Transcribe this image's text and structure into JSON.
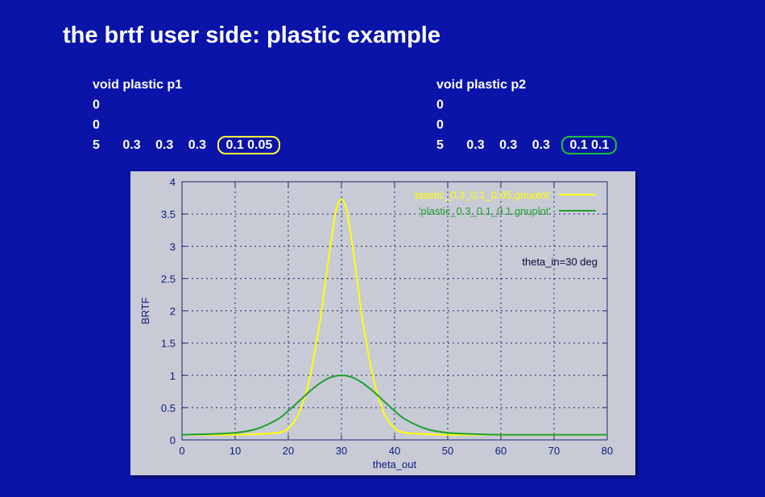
{
  "slide": {
    "title": "the brtf user side: plastic example",
    "background_color": "#0a14a8"
  },
  "definitions": [
    {
      "header": "void plastic p1",
      "line2": "0",
      "line3": "0",
      "count": "5",
      "params": [
        "0.3",
        "0.3",
        "0.3"
      ],
      "highlighted": "0.1 0.05",
      "highlight_color": "#ffff40"
    },
    {
      "header": "void plastic p2",
      "line2": "0",
      "line3": "0",
      "count": "5",
      "params": [
        "0.3",
        "0.3",
        "0.3"
      ],
      "highlighted": "0.1 0.1",
      "highlight_color": "#20c040"
    }
  ],
  "chart_data": {
    "type": "line",
    "xlabel": "theta_out",
    "ylabel": "BRTF",
    "xlim": [
      0,
      80
    ],
    "ylim": [
      0,
      4
    ],
    "x_ticks": [
      0,
      10,
      20,
      30,
      40,
      50,
      60,
      70,
      80
    ],
    "y_ticks": [
      "0",
      "0.5",
      "1",
      "1.5",
      "2",
      "2.5",
      "3",
      "3.5",
      "4"
    ],
    "grid": true,
    "legend_position": "top-right",
    "annotation": "theta_in=30 deg",
    "series": [
      {
        "name": "'plastic_0.3_0.1_0.05.gnuplot'",
        "color": "#ffff00",
        "x": [
          0,
          10,
          14,
          18,
          20,
          22,
          24,
          26,
          27,
          28,
          29,
          30,
          31,
          32,
          33,
          34,
          36,
          38,
          40,
          42,
          46,
          50,
          60,
          70,
          80
        ],
        "y": [
          0.08,
          0.08,
          0.09,
          0.11,
          0.18,
          0.42,
          0.95,
          1.85,
          2.45,
          3.05,
          3.55,
          3.73,
          3.55,
          3.05,
          2.45,
          1.85,
          0.95,
          0.42,
          0.18,
          0.11,
          0.09,
          0.08,
          0.08,
          0.08,
          0.08
        ]
      },
      {
        "name": "'plastic_0.3_0.1_0.1.gnuplot'",
        "color": "#20a030",
        "x": [
          0,
          5,
          10,
          14,
          18,
          20,
          22,
          24,
          26,
          28,
          30,
          32,
          34,
          36,
          38,
          40,
          42,
          46,
          50,
          55,
          60,
          70,
          80
        ],
        "y": [
          0.08,
          0.09,
          0.11,
          0.17,
          0.32,
          0.45,
          0.6,
          0.75,
          0.88,
          0.97,
          1.0,
          0.97,
          0.88,
          0.75,
          0.6,
          0.45,
          0.32,
          0.17,
          0.11,
          0.09,
          0.08,
          0.08,
          0.08
        ]
      }
    ]
  }
}
